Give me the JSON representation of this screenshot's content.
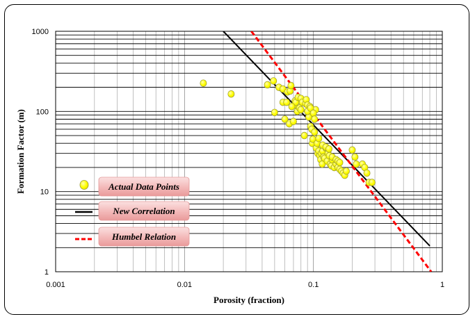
{
  "chart_data": {
    "type": "scatter",
    "x_scale": "log",
    "y_scale": "log",
    "xlim": [
      0.001,
      1
    ],
    "ylim": [
      1,
      1000
    ],
    "xlabel": "Porosity (fraction)",
    "ylabel": "Formation Factor (m)",
    "x_ticks": [
      "0.001",
      "0.01",
      "0.1",
      "1"
    ],
    "y_ticks": [
      "1",
      "10",
      "100",
      "1000"
    ],
    "grid": true,
    "legend_position": "left",
    "series": [
      {
        "name": "Actual Data Points",
        "kind": "scatter",
        "color": "#ffff00",
        "edge_color": "#999933",
        "x": [
          0.014,
          0.023,
          0.044,
          0.049,
          0.05,
          0.054,
          0.058,
          0.06,
          0.063,
          0.065,
          0.066,
          0.067,
          0.07,
          0.071,
          0.072,
          0.073,
          0.075,
          0.076,
          0.078,
          0.08,
          0.082,
          0.085,
          0.087,
          0.088,
          0.09,
          0.092,
          0.094,
          0.095,
          0.097,
          0.098,
          0.099,
          0.1,
          0.102,
          0.104,
          0.105,
          0.107,
          0.108,
          0.11,
          0.112,
          0.114,
          0.115,
          0.117,
          0.118,
          0.12,
          0.122,
          0.125,
          0.128,
          0.13,
          0.133,
          0.135,
          0.138,
          0.14,
          0.145,
          0.15,
          0.155,
          0.16,
          0.165,
          0.17,
          0.175,
          0.18,
          0.2,
          0.21,
          0.215,
          0.24,
          0.25,
          0.26,
          0.27,
          0.285,
          0.058,
          0.062,
          0.068,
          0.08,
          0.09,
          0.095,
          0.1,
          0.102,
          0.11,
          0.118,
          0.125,
          0.132,
          0.14,
          0.15,
          0.155,
          0.16
        ],
        "y": [
          225,
          165,
          215,
          240,
          97,
          200,
          190,
          80,
          175,
          70,
          180,
          210,
          75,
          120,
          135,
          130,
          100,
          150,
          110,
          145,
          130,
          50,
          125,
          140,
          120,
          85,
          115,
          65,
          60,
          40,
          45,
          100,
          55,
          105,
          35,
          40,
          30,
          32,
          28,
          25,
          30,
          22,
          32,
          27,
          26,
          35,
          24,
          30,
          28,
          22,
          21,
          25,
          20,
          22,
          20,
          19,
          18,
          17,
          16,
          18,
          33,
          27,
          22,
          22,
          20,
          17,
          13,
          13,
          130,
          130,
          115,
          105,
          100,
          110,
          95,
          80,
          46,
          38,
          36,
          34,
          27,
          25,
          24,
          23
        ]
      },
      {
        "name": "New Correlation",
        "kind": "line",
        "color": "#000000",
        "x": [
          0.02,
          0.8
        ],
        "y": [
          1000,
          2.1
        ]
      },
      {
        "name": "Humbel Relation",
        "kind": "line",
        "dashed": true,
        "color": "#ff0000",
        "x": [
          0.033,
          0.82
        ],
        "y": [
          1000,
          1.0
        ]
      }
    ]
  }
}
